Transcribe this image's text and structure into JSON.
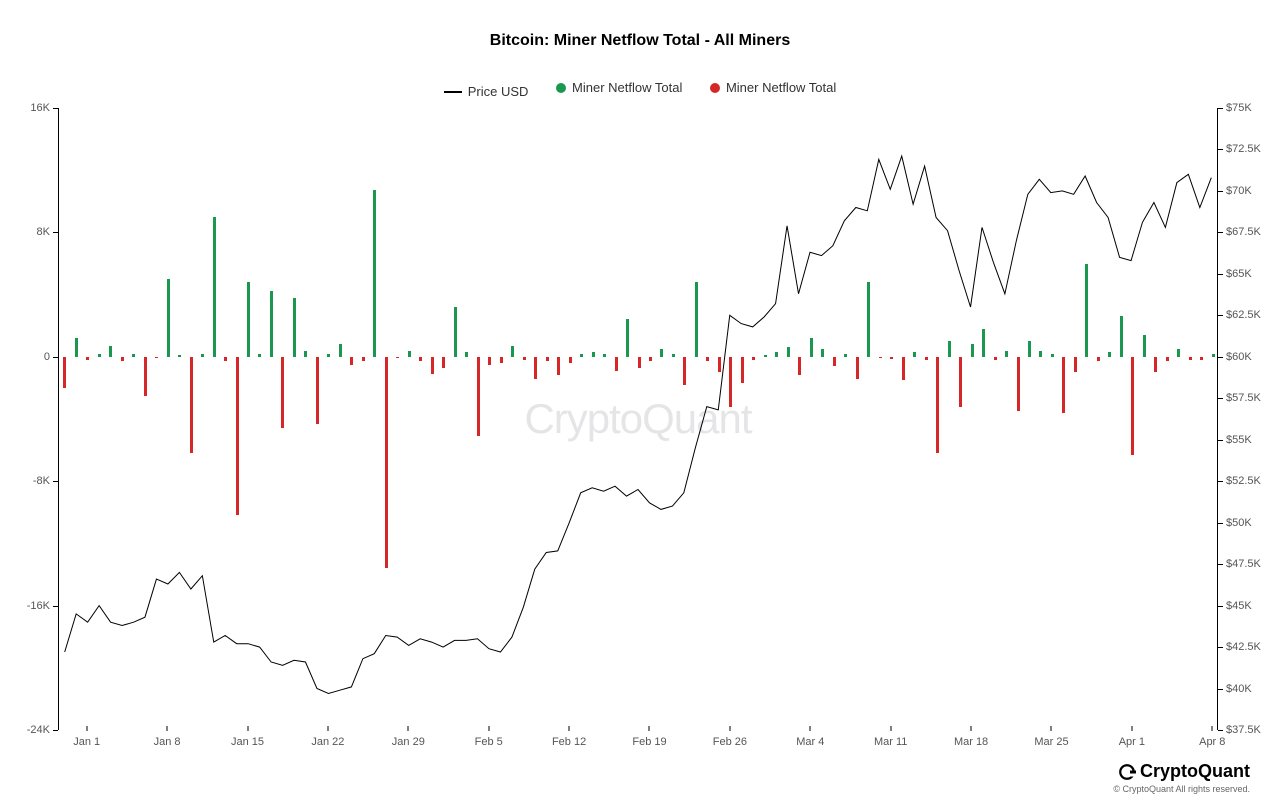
{
  "chart": {
    "title": "Bitcoin: Miner Netflow Total - All Miners",
    "title_fontsize": 16,
    "background_color": "#ffffff",
    "watermark": "CryptoQuant",
    "legend": [
      {
        "type": "line",
        "label": "Price USD",
        "color": "#000000"
      },
      {
        "type": "dot",
        "label": "Miner Netflow Total",
        "color": "#1a9850"
      },
      {
        "type": "dot",
        "label": "Miner Netflow Total",
        "color": "#d62728"
      }
    ],
    "x_labels": [
      "Jan 1",
      "Jan 8",
      "Jan 15",
      "Jan 22",
      "Jan 29",
      "Feb 5",
      "Feb 12",
      "Feb 19",
      "Feb 26",
      "Mar 4",
      "Mar 11",
      "Mar 18",
      "Mar 25",
      "Apr 1",
      "Apr 8"
    ],
    "left_axis": {
      "min": -24000,
      "max": 16000,
      "ticks": [
        16000,
        8000,
        0,
        -8000,
        -16000,
        -24000
      ],
      "tick_labels": [
        "16K",
        "8K",
        "0",
        "-8K",
        "-16K",
        "-24K"
      ]
    },
    "right_axis": {
      "min": 37500,
      "max": 75000,
      "ticks": [
        75000,
        72500,
        70000,
        67500,
        65000,
        62500,
        60000,
        57500,
        55000,
        52500,
        50000,
        47500,
        45000,
        42500,
        40000,
        37500
      ],
      "tick_labels": [
        "$75K",
        "$72.5K",
        "$70K",
        "$67.5K",
        "$65K",
        "$62.5K",
        "$60K",
        "$57.5K",
        "$55K",
        "$52.5K",
        "$50K",
        "$47.5K",
        "$45K",
        "$42.5K",
        "$40K",
        "$37.5K"
      ]
    },
    "colors": {
      "positive": "#1a9850",
      "negative": "#d62728",
      "price_line": "#000000",
      "axis": "#000000"
    },
    "netflow": [
      -2000,
      1200,
      -200,
      200,
      700,
      -300,
      200,
      -2500,
      -100,
      5000,
      100,
      -6200,
      200,
      9000,
      -300,
      -10200,
      4800,
      200,
      4200,
      -4600,
      3800,
      400,
      -4300,
      200,
      800,
      -500,
      -250,
      10700,
      -13600,
      -100,
      400,
      -250,
      -1100,
      -700,
      3200,
      300,
      -5100,
      -500,
      -400,
      700,
      -200,
      -1400,
      -300,
      -1200,
      -400,
      200,
      300,
      200,
      -900,
      2400,
      -700,
      -300,
      500,
      200,
      -1800,
      4800,
      -300,
      -1000,
      -3200,
      -1700,
      -200,
      100,
      300,
      600,
      -1200,
      1200,
      500,
      -600,
      200,
      -1400,
      4800,
      -100,
      -150,
      -1500,
      300,
      -200,
      -6200,
      1000,
      -3200,
      800,
      1800,
      -200,
      400,
      -3500,
      1000,
      400,
      200,
      -3600,
      -1000,
      6000,
      -300,
      300,
      2600,
      -6300,
      1400,
      -1000,
      -300,
      500,
      -200,
      -200,
      200
    ],
    "price": [
      42200,
      44500,
      44000,
      45000,
      44000,
      43800,
      44000,
      44300,
      46600,
      46300,
      47000,
      46000,
      46800,
      42800,
      43200,
      42700,
      42700,
      42500,
      41600,
      41400,
      41700,
      41600,
      40000,
      39700,
      39900,
      40100,
      41800,
      42100,
      43200,
      43100,
      42600,
      43000,
      42800,
      42500,
      42900,
      42900,
      43000,
      42400,
      42200,
      43100,
      44900,
      47200,
      48200,
      48300,
      50000,
      51800,
      52100,
      51900,
      52200,
      51600,
      52000,
      51200,
      50800,
      51000,
      51800,
      54500,
      57000,
      56800,
      62500,
      62000,
      61800,
      62400,
      63200,
      67900,
      63800,
      66300,
      66100,
      66700,
      68200,
      69000,
      68800,
      71900,
      70100,
      72100,
      69200,
      71500,
      68400,
      67600,
      65200,
      63000,
      67800,
      65700,
      63800,
      67000,
      69800,
      70700,
      69900,
      70000,
      69800,
      70900,
      69300,
      68400,
      66000,
      65800,
      68100,
      69300,
      67800,
      70500,
      71000,
      69000,
      70800
    ]
  },
  "footer": {
    "brand": "CryptoQuant",
    "copyright": "© CryptoQuant All rights reserved."
  }
}
